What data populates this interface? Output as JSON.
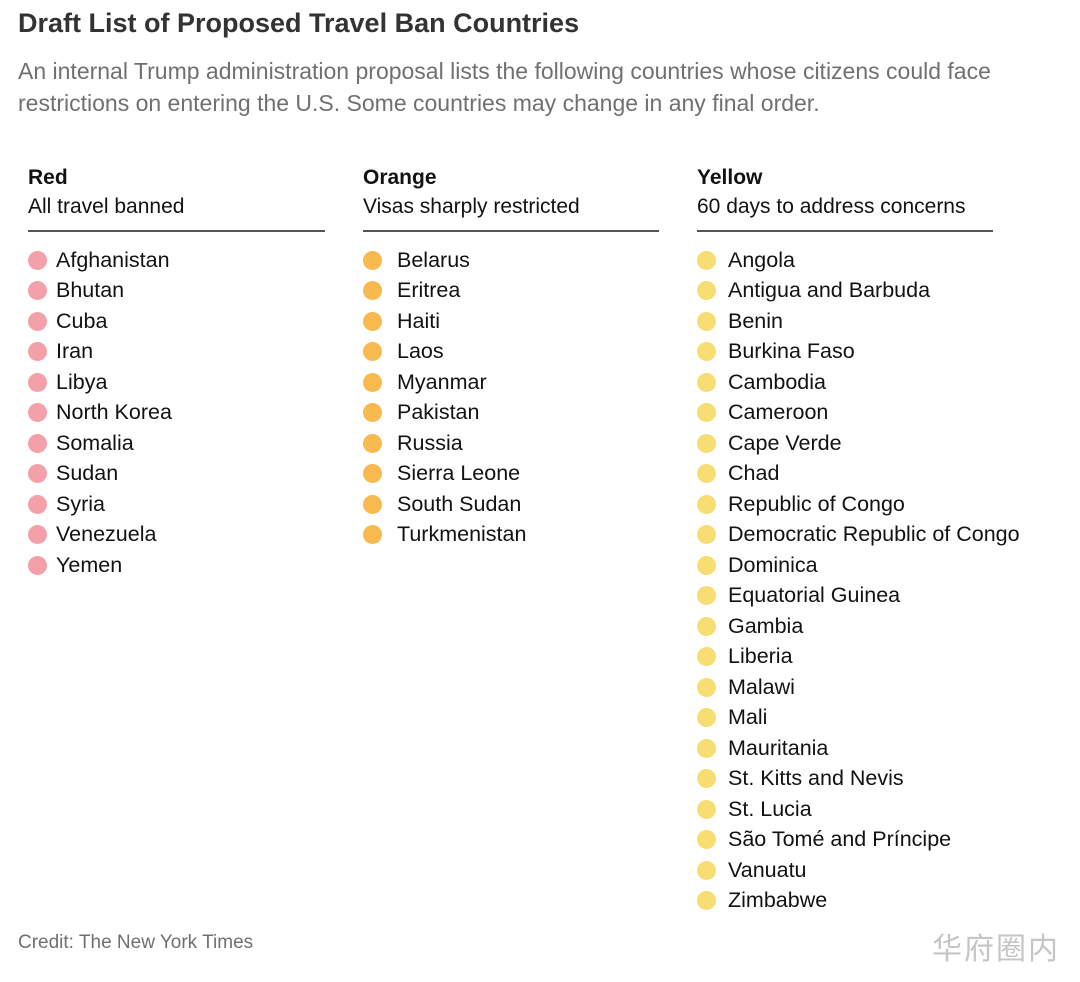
{
  "title": "Draft List of Proposed Travel Ban Countries",
  "subtitle": "An internal Trump administration proposal lists the following countries whose citizens could face restrictions on entering the U.S. Some countries may change in any final order.",
  "columns": {
    "red": {
      "heading": "Red",
      "description": "All travel banned",
      "color": "#f4a0a8",
      "items": [
        "Afghanistan",
        "Bhutan",
        "Cuba",
        "Iran",
        "Libya",
        "North Korea",
        "Somalia",
        "Sudan",
        "Syria",
        "Venezuela",
        "Yemen"
      ]
    },
    "orange": {
      "heading": "Orange",
      "description": "Visas sharply restricted",
      "color": "#f8b94e",
      "items": [
        "Belarus",
        "Eritrea",
        "Haiti",
        "Laos",
        "Myanmar",
        "Pakistan",
        "Russia",
        "Sierra Leone",
        "South Sudan",
        "Turkmenistan"
      ]
    },
    "yellow": {
      "heading": "Yellow",
      "description": "60 days to address concerns",
      "color": "#f7dd72",
      "items": [
        "Angola",
        "Antigua and Barbuda",
        "Benin",
        "Burkina Faso",
        "Cambodia",
        "Cameroon",
        "Cape Verde",
        "Chad",
        "Republic of Congo",
        "Democratic Republic of Congo",
        "Dominica",
        "Equatorial Guinea",
        "Gambia",
        "Liberia",
        "Malawi",
        "Mali",
        "Mauritania",
        "St. Kitts and Nevis",
        "St. Lucia",
        "São Tomé and Príncipe",
        "Vanuatu",
        "Zimbabwe"
      ]
    }
  },
  "credit": "Credit: The New York Times",
  "watermark": "华府圈内"
}
